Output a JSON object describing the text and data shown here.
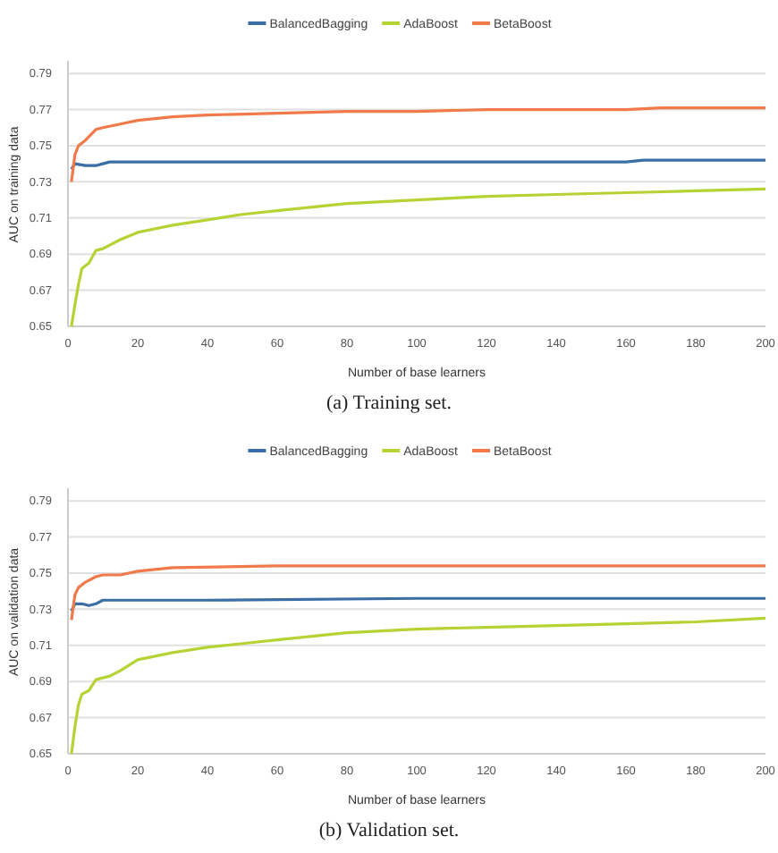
{
  "chart_data": [
    {
      "type": "line",
      "xlabel": "Number of base learners",
      "ylabel": "AUC on training data",
      "annotations": [
        "(a) Training set."
      ],
      "xlim": [
        0,
        200
      ],
      "ylim": [
        0.65,
        0.797
      ],
      "xticks": [
        0,
        20,
        40,
        60,
        80,
        100,
        120,
        140,
        160,
        180,
        200
      ],
      "yticks": [
        0.65,
        0.67,
        0.69,
        0.71,
        0.73,
        0.75,
        0.77,
        0.79
      ],
      "grid": "y",
      "legend": "top",
      "marker": "none",
      "line_style": "solid",
      "series": [
        {
          "name": "BalancedBagging",
          "color": "#3a6ea5",
          "x": [
            1,
            2,
            5,
            8,
            10,
            12,
            20,
            40,
            60,
            100,
            160,
            165,
            200
          ],
          "values": [
            0.737,
            0.74,
            0.739,
            0.739,
            0.74,
            0.741,
            0.741,
            0.741,
            0.741,
            0.741,
            0.741,
            0.742,
            0.742
          ]
        },
        {
          "name": "AdaBoost",
          "color": "#b5d334",
          "x": [
            1,
            2,
            3,
            4,
            6,
            8,
            10,
            15,
            20,
            30,
            40,
            50,
            60,
            80,
            100,
            120,
            140,
            160,
            180,
            200
          ],
          "values": [
            0.65,
            0.662,
            0.673,
            0.682,
            0.685,
            0.692,
            0.693,
            0.698,
            0.702,
            0.706,
            0.709,
            0.712,
            0.714,
            0.718,
            0.72,
            0.722,
            0.723,
            0.724,
            0.725,
            0.726
          ]
        },
        {
          "name": "BetaBoost",
          "color": "#f07a4a",
          "x": [
            1,
            2,
            3,
            5,
            8,
            10,
            15,
            20,
            30,
            40,
            60,
            80,
            100,
            120,
            160,
            170,
            200
          ],
          "values": [
            0.73,
            0.745,
            0.75,
            0.753,
            0.759,
            0.76,
            0.762,
            0.764,
            0.766,
            0.767,
            0.768,
            0.769,
            0.769,
            0.77,
            0.77,
            0.771,
            0.771
          ]
        }
      ]
    },
    {
      "type": "line",
      "xlabel": "Number of base learners",
      "ylabel": "AUC on validation data",
      "annotations": [
        "(b) Validation set."
      ],
      "xlim": [
        0,
        200
      ],
      "ylim": [
        0.65,
        0.797
      ],
      "xticks": [
        0,
        20,
        40,
        60,
        80,
        100,
        120,
        140,
        160,
        180,
        200
      ],
      "yticks": [
        0.65,
        0.67,
        0.69,
        0.71,
        0.73,
        0.75,
        0.77,
        0.79
      ],
      "grid": "y",
      "legend": "top",
      "marker": "none",
      "line_style": "solid",
      "series": [
        {
          "name": "BalancedBagging",
          "color": "#3a6ea5",
          "x": [
            1,
            2,
            4,
            6,
            8,
            10,
            15,
            20,
            40,
            100,
            200
          ],
          "values": [
            0.729,
            0.733,
            0.733,
            0.732,
            0.733,
            0.735,
            0.735,
            0.735,
            0.735,
            0.736,
            0.736
          ]
        },
        {
          "name": "AdaBoost",
          "color": "#b5d334",
          "x": [
            1,
            2,
            3,
            4,
            6,
            8,
            12,
            15,
            20,
            30,
            40,
            50,
            60,
            80,
            100,
            120,
            160,
            180,
            200
          ],
          "values": [
            0.65,
            0.665,
            0.677,
            0.683,
            0.685,
            0.691,
            0.693,
            0.696,
            0.702,
            0.706,
            0.709,
            0.711,
            0.713,
            0.717,
            0.719,
            0.72,
            0.722,
            0.723,
            0.725
          ]
        },
        {
          "name": "BetaBoost",
          "color": "#f07a4a",
          "x": [
            1,
            2,
            3,
            5,
            8,
            10,
            15,
            20,
            25,
            30,
            60,
            100,
            200
          ],
          "values": [
            0.724,
            0.738,
            0.742,
            0.745,
            0.748,
            0.749,
            0.749,
            0.751,
            0.752,
            0.753,
            0.754,
            0.754,
            0.754
          ]
        }
      ]
    }
  ]
}
